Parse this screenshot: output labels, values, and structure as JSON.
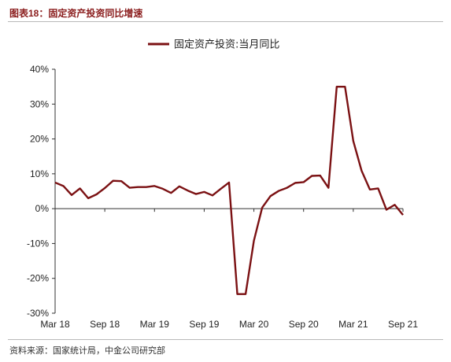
{
  "header": {
    "title": "图表18：固定资产投资同比增速"
  },
  "footer": {
    "source": "资料来源：国家统计局，中金公司研究部"
  },
  "chart_data": {
    "type": "line",
    "title": "",
    "xlabel": "",
    "ylabel": "",
    "ylim": [
      -30,
      40
    ],
    "yticks": [
      40,
      30,
      20,
      10,
      0,
      -10,
      -20,
      -30
    ],
    "ytick_labels": [
      "40%",
      "30%",
      "20%",
      "10%",
      "0%",
      "-10%",
      "-20%",
      "-30%"
    ],
    "xtick_labels": [
      {
        "label": "Mar 18",
        "index": 0
      },
      {
        "label": "Sep 18",
        "index": 6
      },
      {
        "label": "Mar 19",
        "index": 12
      },
      {
        "label": "Sep 19",
        "index": 18
      },
      {
        "label": "Mar 20",
        "index": 24
      },
      {
        "label": "Sep 20",
        "index": 30
      },
      {
        "label": "Mar 21",
        "index": 36
      },
      {
        "label": "Sep 21",
        "index": 42
      }
    ],
    "legend": {
      "position": "top-center"
    },
    "grid": false,
    "series": [
      {
        "name": "固定资产投资:当月同比",
        "color": "#7b1113",
        "values": [
          7.5,
          6.5,
          3.9,
          5.8,
          3.0,
          4.1,
          5.9,
          8.0,
          7.9,
          6.0,
          6.2,
          6.2,
          6.5,
          5.7,
          4.5,
          6.4,
          5.2,
          4.2,
          4.8,
          3.8,
          5.7,
          7.5,
          -24.5,
          -24.5,
          -9.2,
          0.3,
          3.6,
          5.1,
          6.0,
          7.4,
          7.6,
          9.4,
          9.5,
          6.0,
          35.0,
          35.0,
          19.4,
          10.9,
          5.5,
          5.8,
          -0.3,
          1.1,
          -1.8
        ]
      }
    ]
  }
}
